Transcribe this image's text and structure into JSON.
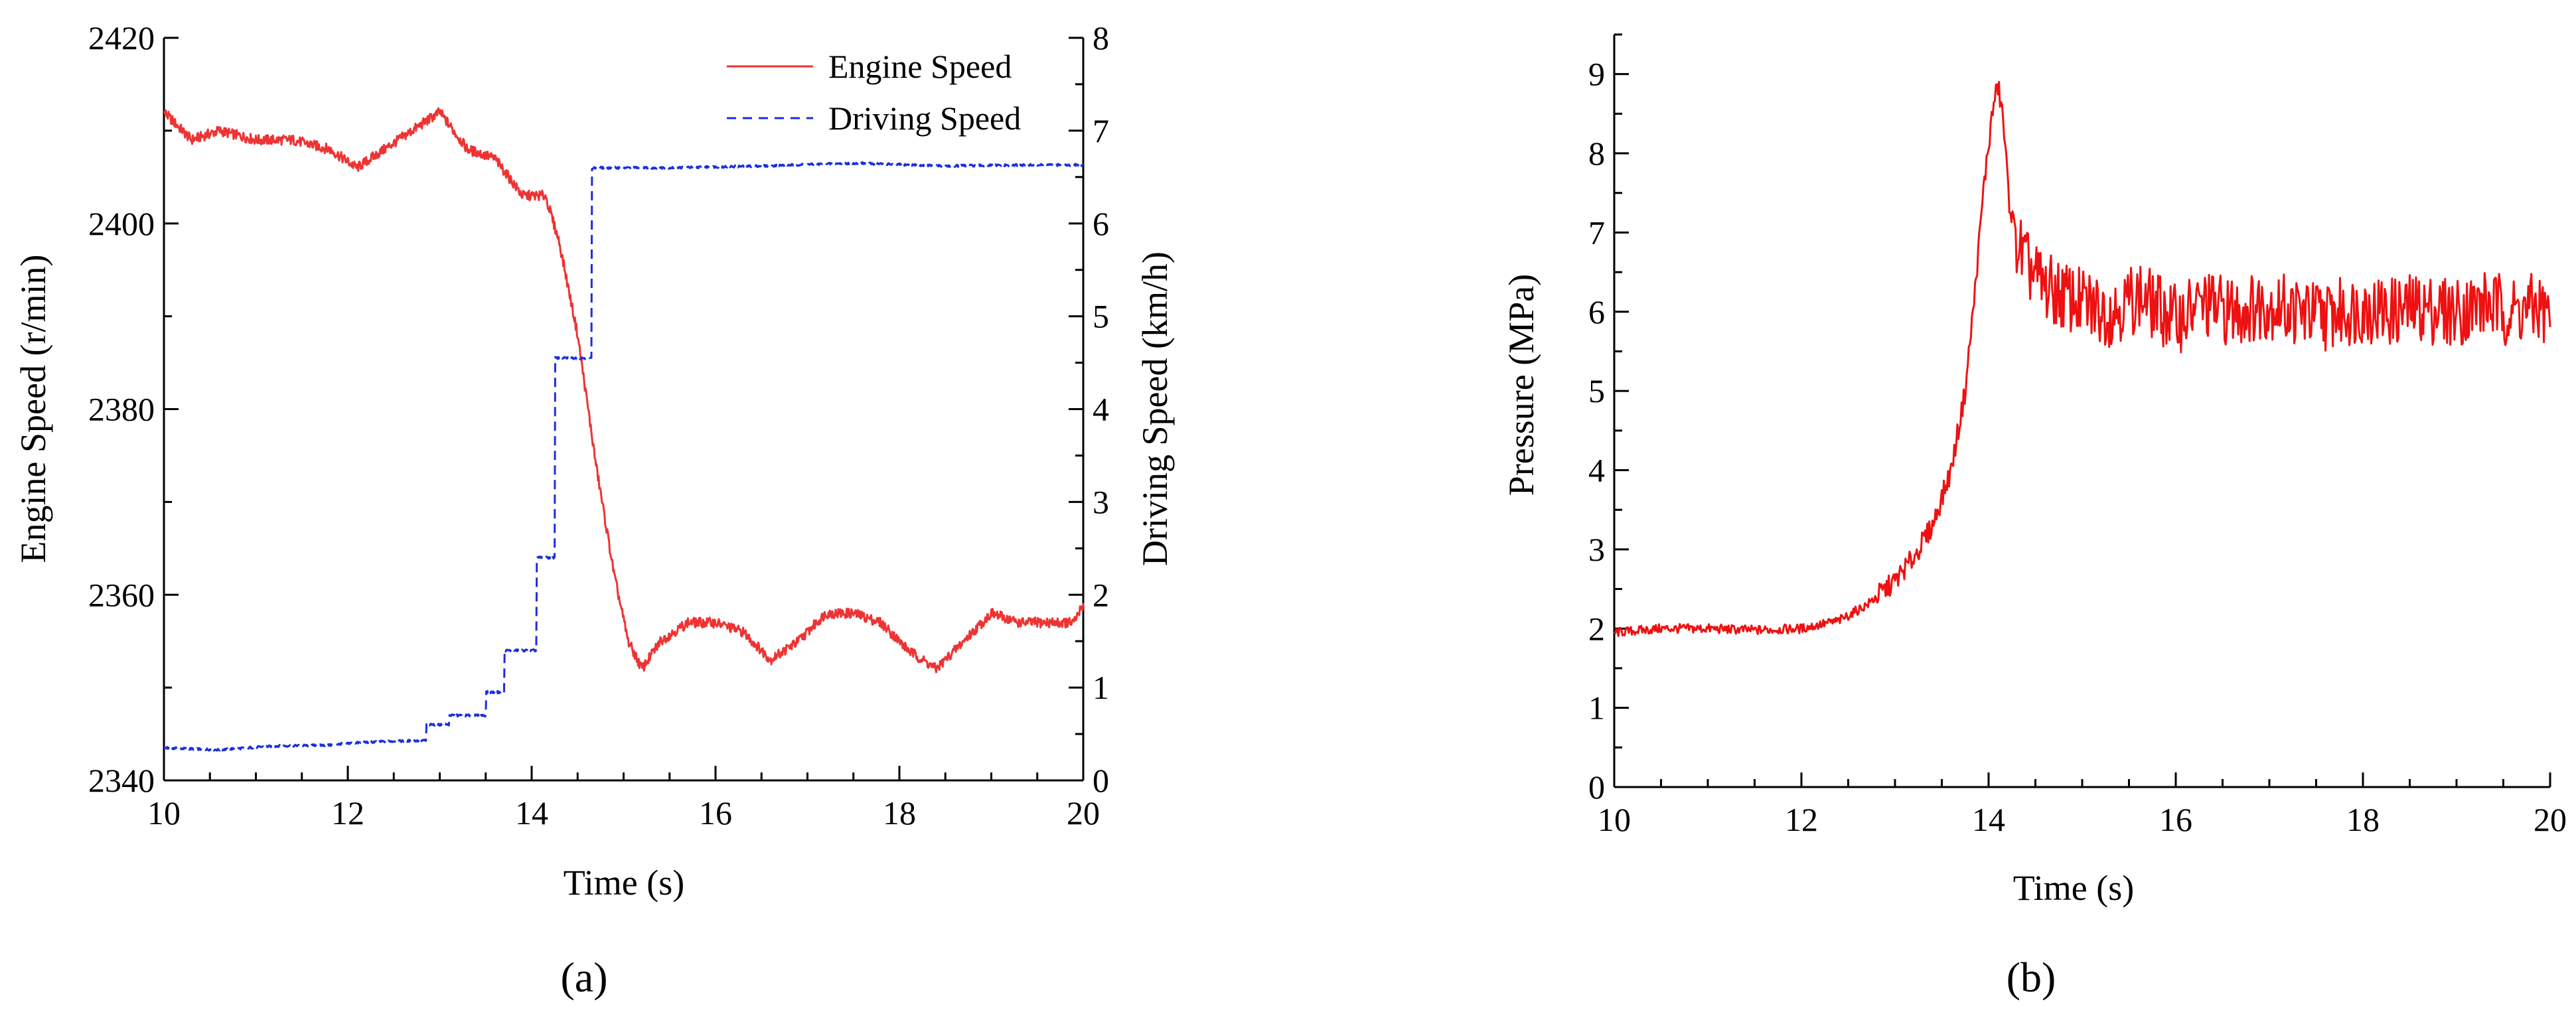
{
  "chart_data": [
    {
      "type": "line",
      "panel_label": "(a)",
      "xlabel": "Time (s)",
      "ylabel": "Engine Speed (r/min)",
      "y2label": "Driving Speed (km/h)",
      "xlim": [
        10,
        20
      ],
      "ylim": [
        2340,
        2420
      ],
      "y2lim": [
        0,
        8
      ],
      "x_ticks": [
        "10",
        "12",
        "14",
        "16",
        "18",
        "20"
      ],
      "y_ticks": [
        "2340",
        "2360",
        "2380",
        "2400",
        "2420"
      ],
      "y2_ticks": [
        "0",
        "1",
        "2",
        "3",
        "4",
        "5",
        "6",
        "7",
        "8"
      ],
      "grid": false,
      "legend_position": "top-right",
      "series": [
        {
          "name": "Engine Speed",
          "axis": "left",
          "color": "#ee3333",
          "style": "solid",
          "x": [
            10.0,
            10.3,
            10.6,
            11.0,
            11.4,
            11.8,
            12.1,
            12.4,
            12.7,
            13.0,
            13.3,
            13.6,
            13.9,
            14.05,
            14.15,
            14.3,
            14.5,
            14.7,
            14.9,
            15.05,
            15.2,
            15.4,
            15.7,
            16.0,
            16.3,
            16.6,
            16.9,
            17.2,
            17.5,
            17.8,
            18.1,
            18.4,
            18.7,
            19.0,
            19.3,
            19.6,
            19.9,
            20.0
          ],
          "y": [
            2412,
            2409,
            2410,
            2409,
            2409,
            2408,
            2406,
            2408,
            2410,
            2412,
            2408,
            2407,
            2403,
            2403,
            2403,
            2398,
            2388,
            2374,
            2362,
            2355,
            2352,
            2355,
            2357,
            2357,
            2356,
            2353,
            2355,
            2358,
            2358,
            2357,
            2354,
            2352,
            2355,
            2358,
            2357,
            2357,
            2357,
            2359
          ]
        },
        {
          "name": "Driving Speed",
          "axis": "right",
          "color": "#1a2ee0",
          "style": "dashed",
          "x": [
            10.0,
            10.6,
            11.2,
            11.8,
            12.0,
            12.4,
            12.85,
            12.85,
            13.1,
            13.1,
            13.5,
            13.5,
            13.7,
            13.7,
            14.05,
            14.05,
            14.25,
            14.25,
            14.65,
            14.65,
            15.5,
            16.5,
            17.5,
            18.5,
            19.5,
            20.0
          ],
          "y": [
            0.35,
            0.33,
            0.37,
            0.38,
            0.4,
            0.42,
            0.43,
            0.6,
            0.6,
            0.7,
            0.7,
            0.95,
            0.95,
            1.4,
            1.4,
            2.4,
            2.4,
            4.55,
            4.55,
            6.6,
            6.6,
            6.62,
            6.65,
            6.62,
            6.63,
            6.63
          ]
        }
      ]
    },
    {
      "type": "line",
      "panel_label": "(b)",
      "xlabel": "Time (s)",
      "ylabel": "Pressure (MPa)",
      "xlim": [
        10,
        20
      ],
      "ylim": [
        0,
        9.5
      ],
      "x_ticks": [
        "10",
        "12",
        "14",
        "16",
        "18",
        "20"
      ],
      "y_ticks": [
        "0",
        "1",
        "2",
        "3",
        "4",
        "5",
        "6",
        "7",
        "8",
        "9"
      ],
      "grid": false,
      "series": [
        {
          "name": "Pressure",
          "color": "#ee1111",
          "style": "solid",
          "x": [
            10.0,
            10.5,
            11.0,
            11.5,
            12.0,
            12.4,
            12.7,
            13.0,
            13.2,
            13.4,
            13.6,
            13.75,
            13.85,
            13.95,
            14.05,
            14.1,
            14.15,
            14.22,
            14.3,
            14.4,
            14.6,
            14.8,
            15.0,
            15.3,
            15.6,
            16.0,
            16.3,
            16.6,
            17.0,
            17.3,
            17.6,
            18.0,
            18.3,
            18.6,
            19.0,
            19.3,
            19.6,
            19.9,
            20.0
          ],
          "y": [
            1.95,
            2.0,
            2.0,
            1.98,
            2.0,
            2.1,
            2.3,
            2.6,
            2.9,
            3.3,
            4.0,
            5.0,
            6.2,
            7.6,
            8.6,
            8.85,
            8.5,
            7.4,
            6.9,
            6.6,
            6.3,
            6.2,
            6.1,
            6.0,
            6.2,
            5.9,
            6.1,
            6.0,
            6.1,
            6.0,
            5.95,
            6.05,
            6.0,
            6.05,
            6.0,
            6.1,
            6.0,
            6.05,
            5.9
          ]
        }
      ]
    }
  ]
}
